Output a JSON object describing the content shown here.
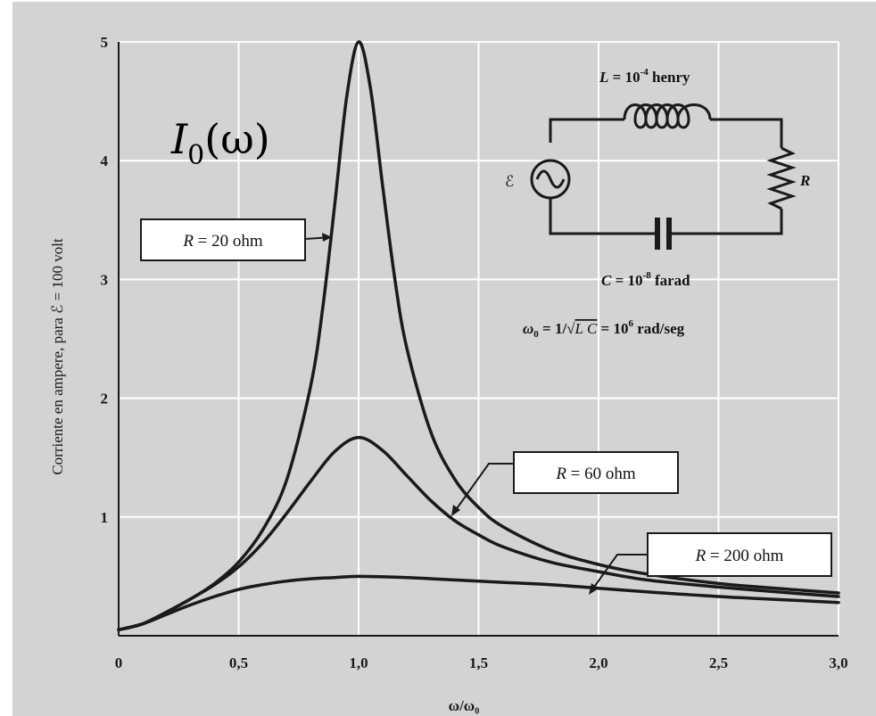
{
  "chart_data": {
    "type": "line",
    "title": "",
    "xlabel": "ω/ω₀",
    "ylabel": "Corriente en ampere, para ℰ = 100 volt",
    "xlim": [
      0,
      3.0
    ],
    "ylim": [
      0,
      5
    ],
    "x_ticks": [
      "0",
      "0,5",
      "1,0",
      "1,5",
      "2,0",
      "2,5",
      "3,0"
    ],
    "y_ticks": [
      "1",
      "2",
      "3",
      "4",
      "5"
    ],
    "grid": true,
    "overlay_label": {
      "base": "I",
      "sub": "0",
      "arg": "(ω)"
    },
    "series": [
      {
        "name": "R = 20 ohm",
        "legend": {
          "var": "R",
          "rest": " = 20 ohm"
        },
        "x": [
          0,
          0.1,
          0.2,
          0.3,
          0.4,
          0.5,
          0.6,
          0.7,
          0.8,
          0.85,
          0.9,
          0.95,
          1.0,
          1.05,
          1.1,
          1.15,
          1.2,
          1.3,
          1.4,
          1.5,
          1.6,
          1.8,
          2.0,
          2.2,
          2.5,
          2.8,
          3.0
        ],
        "values": [
          0.05,
          0.1,
          0.2,
          0.31,
          0.44,
          0.62,
          0.89,
          1.31,
          2.1,
          2.75,
          3.62,
          4.53,
          5.0,
          4.6,
          3.79,
          3.02,
          2.43,
          1.72,
          1.32,
          1.08,
          0.92,
          0.72,
          0.6,
          0.52,
          0.44,
          0.39,
          0.36
        ]
      },
      {
        "name": "R = 60 ohm",
        "legend": {
          "var": "R",
          "rest": " = 60 ohm"
        },
        "x": [
          0,
          0.1,
          0.2,
          0.3,
          0.4,
          0.5,
          0.6,
          0.7,
          0.8,
          0.9,
          1.0,
          1.1,
          1.2,
          1.3,
          1.4,
          1.5,
          1.6,
          1.8,
          2.0,
          2.2,
          2.5,
          2.8,
          3.0
        ],
        "values": [
          0.05,
          0.1,
          0.2,
          0.31,
          0.43,
          0.58,
          0.78,
          1.03,
          1.3,
          1.55,
          1.67,
          1.56,
          1.35,
          1.14,
          0.97,
          0.85,
          0.75,
          0.62,
          0.54,
          0.47,
          0.41,
          0.36,
          0.33
        ]
      },
      {
        "name": "R = 200 ohm",
        "legend": {
          "var": "R",
          "rest": " = 200 ohm"
        },
        "x": [
          0,
          0.1,
          0.2,
          0.3,
          0.4,
          0.5,
          0.6,
          0.7,
          0.8,
          0.9,
          1.0,
          1.2,
          1.4,
          1.6,
          1.8,
          2.0,
          2.2,
          2.5,
          2.8,
          3.0
        ],
        "values": [
          0.05,
          0.1,
          0.18,
          0.26,
          0.33,
          0.39,
          0.43,
          0.46,
          0.48,
          0.49,
          0.5,
          0.49,
          0.47,
          0.45,
          0.43,
          0.4,
          0.37,
          0.33,
          0.3,
          0.28
        ]
      }
    ]
  },
  "circuit": {
    "L_label": {
      "var": "L",
      "eq": " = 10",
      "exp": "-4",
      "unit": " henry"
    },
    "C_label": {
      "var": "C",
      "eq": " = 10",
      "exp": "-8",
      "unit": " farad"
    },
    "R_label": "R",
    "emf_label": "ℰ",
    "omega_label": {
      "lhs": "ω",
      "sub": "0",
      "mid": " = 1/√",
      "lc": "L C",
      "rhs": "  = 10",
      "exp": "6",
      "unit": " rad/seg"
    }
  },
  "colors": {
    "background": "#d3d3d3",
    "grid": "#ffffff",
    "curve": "#1a1a1a",
    "legend_box": "#ffffff"
  }
}
